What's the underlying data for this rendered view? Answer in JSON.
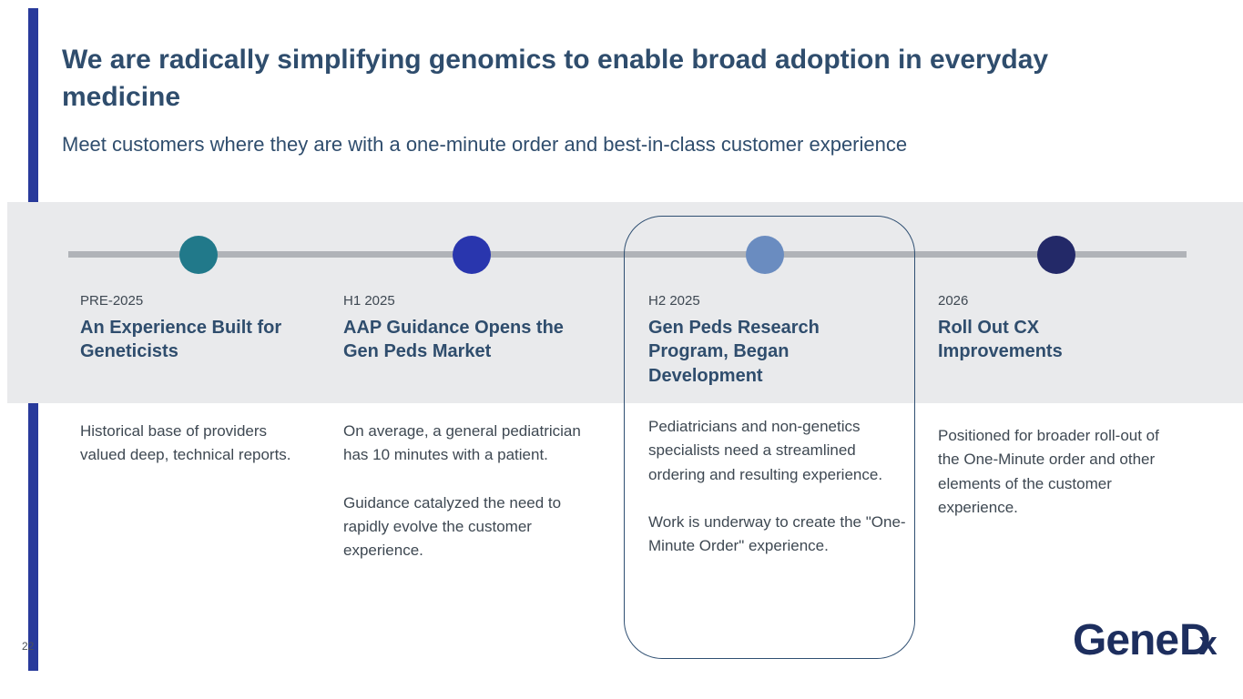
{
  "slide": {
    "title": "We are radically simplifying genomics to enable broad adoption in everyday medicine",
    "subtitle": "Meet customers where they are with a one-minute order and best-in-class customer experience",
    "page_number": "22",
    "logo": {
      "gene": "Gene",
      "d": "D",
      "x": "x"
    }
  },
  "colors": {
    "accent_bar": "#283a9b",
    "title_text": "#2f4d6d",
    "band": "#e9eaec",
    "timeline_line": "#b0b3b8",
    "highlight_border": "#2f4f72"
  },
  "timeline": {
    "milestones": [
      {
        "date": "PRE-2025",
        "title": "An Experience Built for Geneticists",
        "dot_color": "#21798a",
        "highlighted": false,
        "body": [
          "Historical base of providers valued deep, technical reports."
        ]
      },
      {
        "date": "H1 2025",
        "title": "AAP Guidance Opens the Gen Peds Market",
        "dot_color": "#2936ae",
        "highlighted": false,
        "body": [
          "On average, a general pediatrician has 10 minutes with a patient.",
          "Guidance catalyzed the need to rapidly evolve the customer experience."
        ]
      },
      {
        "date": "H2 2025",
        "title": "Gen Peds Research Program, Began Development",
        "dot_color": "#6a8cc0",
        "highlighted": true,
        "body": [
          "Pediatricians and non-genetics specialists need a streamlined ordering and resulting experience.",
          "Work is underway to create the \"One-Minute Order\" experience."
        ]
      },
      {
        "date": "2026",
        "title": "Roll Out CX Improvements",
        "dot_color": "#232968",
        "highlighted": false,
        "body": [
          "Positioned for broader roll-out of the One-Minute order and other elements of the customer experience."
        ]
      }
    ]
  }
}
